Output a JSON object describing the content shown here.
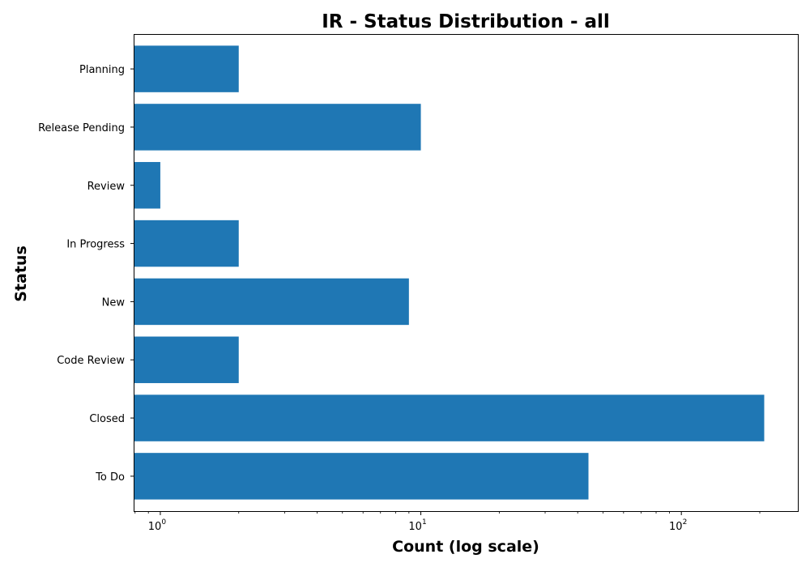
{
  "chart_data": {
    "type": "bar",
    "orientation": "horizontal",
    "title": "IR - Status Distribution - all",
    "xlabel": "Count (log scale)",
    "ylabel": "Status",
    "x_scale": "log",
    "xlim": [
      0.79,
      280
    ],
    "x_ticks": [
      {
        "base": "10",
        "exp": "0",
        "value": 1
      },
      {
        "base": "10",
        "exp": "1",
        "value": 10
      },
      {
        "base": "10",
        "exp": "2",
        "value": 100
      }
    ],
    "categories": [
      "To Do",
      "Closed",
      "Code Review",
      "New",
      "In Progress",
      "Review",
      "Release Pending",
      "Planning"
    ],
    "values": [
      44,
      208,
      2,
      9,
      2,
      1,
      10,
      2
    ],
    "bar_color": "#1f77b4",
    "grid": false,
    "legend": null
  }
}
